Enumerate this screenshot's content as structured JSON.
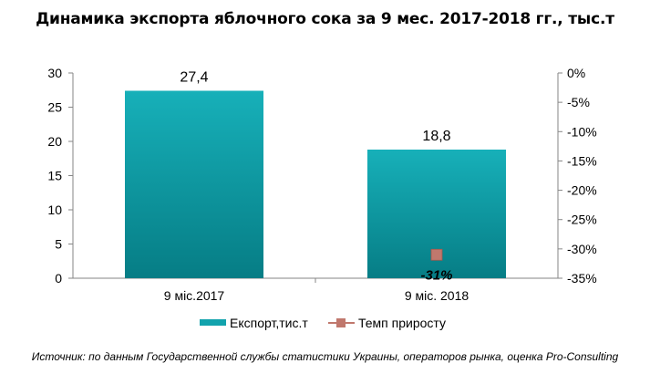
{
  "chart_data": {
    "type": "bar",
    "title": "Динамика экспорта яблочного сока за 9 мес. 2017-2018 гг., тыс.т",
    "categories": [
      "9 міс.2017",
      "9 міс. 2018"
    ],
    "series": [
      {
        "name": "Експорт,тис.т",
        "type": "bar",
        "axis": "left",
        "values": [
          27.4,
          18.8
        ],
        "data_labels": [
          "27,4",
          "18,8"
        ],
        "color": "#12a3ad"
      },
      {
        "name": "Темп приросту",
        "type": "scatter",
        "axis": "right",
        "values": [
          null,
          -31
        ],
        "data_labels": [
          "",
          "-31%"
        ],
        "color": "#c0786d"
      }
    ],
    "y_left": {
      "min": 0,
      "max": 30,
      "step": 5,
      "tick_labels": [
        "0",
        "5",
        "10",
        "15",
        "20",
        "25",
        "30"
      ]
    },
    "y_right": {
      "min": -35,
      "max": 0,
      "step": 5,
      "tick_labels": [
        "-35%",
        "-30%",
        "-25%",
        "-20%",
        "-15%",
        "-10%",
        "-5%",
        "0%"
      ]
    },
    "grid": false,
    "legend_position": "bottom"
  },
  "source": "Источник: по данным Государственной службы статистики Украины, операторов рынка, оценка Pro-Consulting"
}
